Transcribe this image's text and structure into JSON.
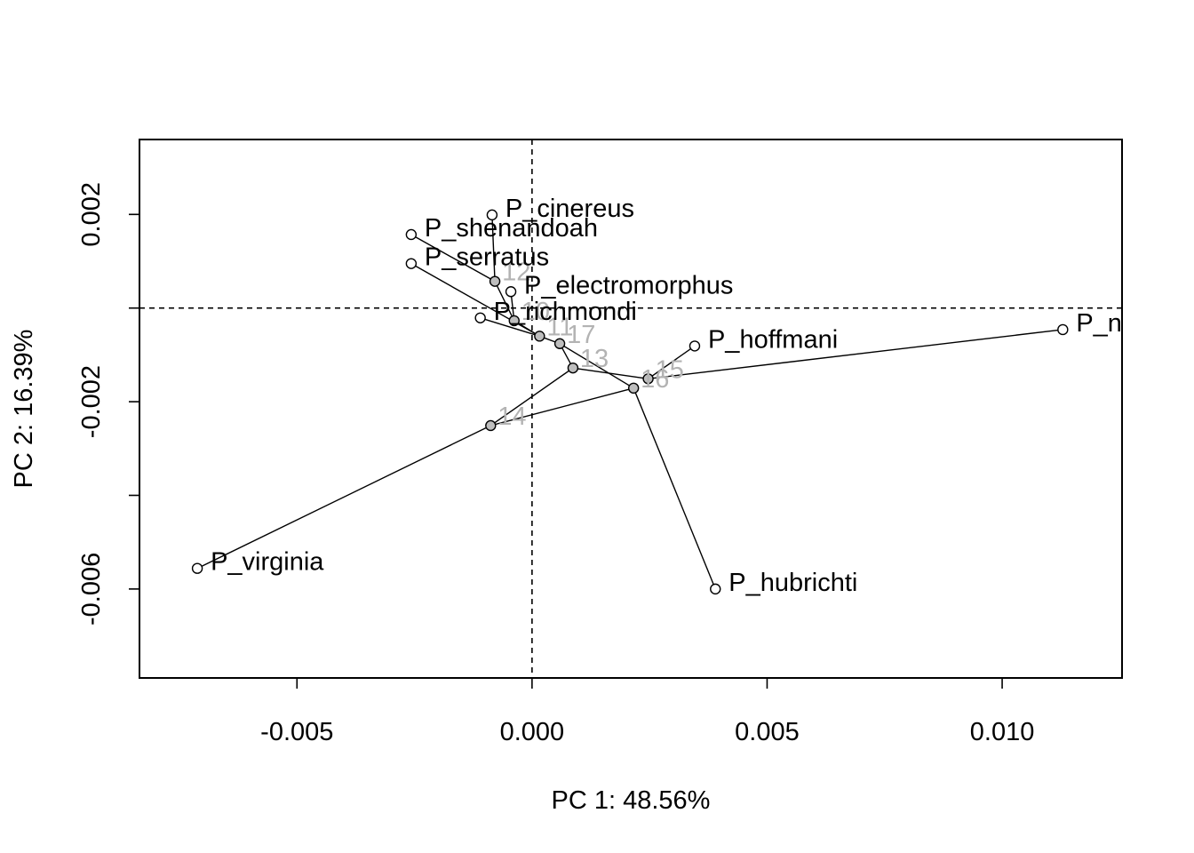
{
  "chart_data": {
    "type": "scatter",
    "title": "",
    "xlabel": "PC 1: 48.56%",
    "ylabel": "PC 2: 16.39%",
    "xlim": [
      -0.00835,
      0.01255
    ],
    "ylim": [
      -0.0079,
      0.0036
    ],
    "x_ticks": [
      -0.005,
      0.0,
      0.005,
      0.01
    ],
    "x_tick_labels": [
      "-0.005",
      "0.000",
      "0.005",
      "0.010"
    ],
    "y_ticks": [
      0.002,
      0.0,
      -0.002,
      -0.004,
      -0.006
    ],
    "y_tick_labels": [
      "0.002",
      "",
      "-0.002",
      "",
      "-0.006"
    ],
    "reference_lines": {
      "vertical_x": 0.0,
      "horizontal_y": 0.0
    },
    "tips": [
      {
        "name": "P_cinereus",
        "x": -0.00085,
        "y": 0.00199
      },
      {
        "name": "P_shenandoah",
        "x": -0.00257,
        "y": 0.00157
      },
      {
        "name": "P_serratus",
        "x": -0.00257,
        "y": 0.00095
      },
      {
        "name": "P_electromorphus",
        "x": -0.00045,
        "y": 0.00035
      },
      {
        "name": "P_richmondi",
        "x": -0.0011,
        "y": -0.00021
      },
      {
        "name": "P_hoffmani",
        "x": 0.00346,
        "y": -0.00081
      },
      {
        "name": "P_n",
        "x": 0.01129,
        "y": -0.00046
      },
      {
        "name": "P_virginia",
        "x": -0.00712,
        "y": -0.00556
      },
      {
        "name": "P_hubrichti",
        "x": 0.0039,
        "y": -0.006
      }
    ],
    "nodes": [
      {
        "name": "12",
        "x": -0.00079,
        "y": 0.00057
      },
      {
        "name": "10",
        "x": -0.00038,
        "y": -0.00027
      },
      {
        "name": "11",
        "x": 0.00016,
        "y": -0.0006
      },
      {
        "name": "17",
        "x": 0.00059,
        "y": -0.00076
      },
      {
        "name": "13",
        "x": 0.00087,
        "y": -0.00128
      },
      {
        "name": "15",
        "x": 0.00247,
        "y": -0.00151
      },
      {
        "name": "16",
        "x": 0.00216,
        "y": -0.00171
      },
      {
        "name": "14",
        "x": -0.00088,
        "y": -0.00251
      }
    ],
    "edges": [
      [
        "12",
        "P_cinereus"
      ],
      [
        "12",
        "P_shenandoah"
      ],
      [
        "12",
        "10"
      ],
      [
        "10",
        "P_electromorphus"
      ],
      [
        "10",
        "11"
      ],
      [
        "11",
        "P_serratus"
      ],
      [
        "11",
        "P_richmondi"
      ],
      [
        "11",
        "17"
      ],
      [
        "17",
        "16"
      ],
      [
        "13",
        "17"
      ],
      [
        "13",
        "14"
      ],
      [
        "13",
        "15"
      ],
      [
        "15",
        "P_hoffmani"
      ],
      [
        "15",
        "P_n"
      ],
      [
        "14",
        "P_virginia"
      ],
      [
        "14",
        "16"
      ],
      [
        "16",
        "P_hubrichti"
      ]
    ],
    "colors": {
      "tip_fill": "#ffffff",
      "node_fill": "#bebebe",
      "node_label": "#b3b3b3",
      "line": "#000000"
    }
  }
}
